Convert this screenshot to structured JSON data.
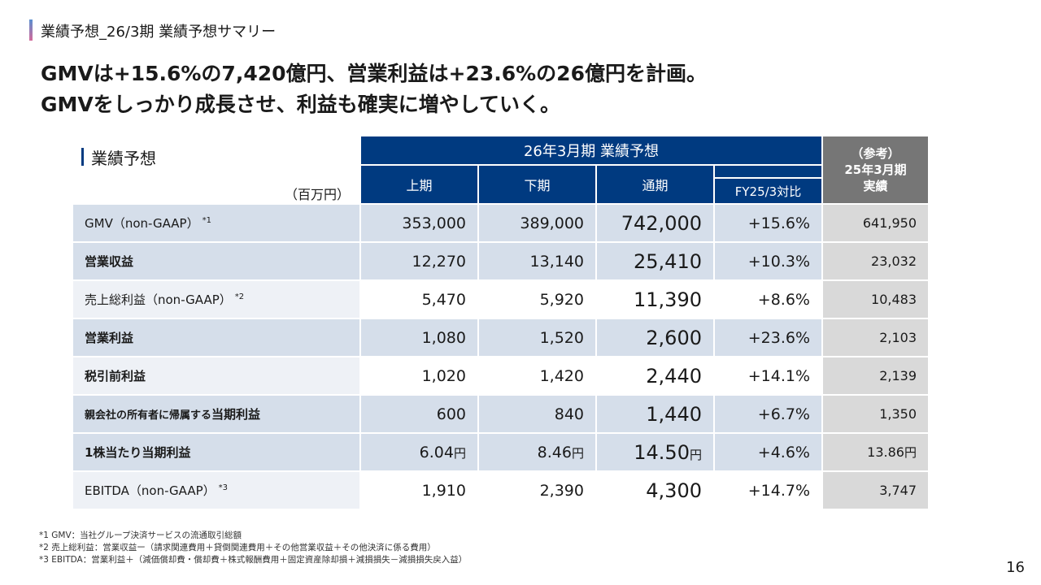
{
  "header": {
    "title": "業績予想_26/3期 業績予想サマリー"
  },
  "headline": {
    "line1": "GMVは+15.6%の7,420億円、営業利益は+23.6%の26億円を計画。",
    "line2": "GMVをしっかり成長させ、利益も確実に増やしていく。"
  },
  "table": {
    "title": "業績予想",
    "unit": "（百万円）",
    "forecast_header": "26年3月期 業績予想",
    "ref_header_line1": "（参考）",
    "ref_header_line2": "25年3月期",
    "ref_header_line3": "実績",
    "columns": [
      "上期",
      "下期",
      "通期",
      "FY25/3対比"
    ],
    "rows": [
      {
        "label": "GMV（non-GAAP）",
        "note": "*1",
        "h1": "353,000",
        "h2": "389,000",
        "full": "742,000",
        "yoy": "+15.6%",
        "ref": "641,950"
      },
      {
        "label": "営業収益",
        "note": "",
        "h1": "12,270",
        "h2": "13,140",
        "full": "25,410",
        "yoy": "+10.3%",
        "ref": "23,032"
      },
      {
        "label": "売上総利益（non-GAAP）",
        "note": "*2",
        "h1": "5,470",
        "h2": "5,920",
        "full": "11,390",
        "yoy": "+8.6%",
        "ref": "10,483"
      },
      {
        "label": "営業利益",
        "note": "",
        "h1": "1,080",
        "h2": "1,520",
        "full": "2,600",
        "yoy": "+23.6%",
        "ref": "2,103"
      },
      {
        "label": "税引前利益",
        "note": "",
        "h1": "1,020",
        "h2": "1,420",
        "full": "2,440",
        "yoy": "+14.1%",
        "ref": "2,139"
      },
      {
        "label_prefix": "親会社の所有者に帰属する",
        "label": "当期利益",
        "note": "",
        "h1": "600",
        "h2": "840",
        "full": "1,440",
        "yoy": "+6.7%",
        "ref": "1,350"
      },
      {
        "label": "1株当たり当期利益",
        "note": "",
        "h1": "6.04",
        "h2": "8.46",
        "full": "14.50",
        "yoy": "+4.6%",
        "ref": "13.86",
        "yen": "円"
      },
      {
        "label": "EBITDA（non-GAAP）",
        "note": "*3",
        "h1": "1,910",
        "h2": "2,390",
        "full": "4,300",
        "yoy": "+14.7%",
        "ref": "3,747"
      }
    ]
  },
  "footnotes": [
    "*1 GMV：当社グループ決済サービスの流通取引総額",
    "*2 売上総利益：営業収益ー（請求関連費用＋貸倒関連費用＋その他営業収益＋その他決済に係る費用）",
    "*3 EBITDA：営業利益＋（減価償却費・償却費＋株式報酬費用＋固定資産除却損＋減損損失－減損損失戻入益）"
  ],
  "page_number": "16",
  "colors": {
    "header_blue": "#003a80",
    "ref_gray": "#767676",
    "row_shade": "#d5deea",
    "ref_cell": "#d9d9d9"
  }
}
